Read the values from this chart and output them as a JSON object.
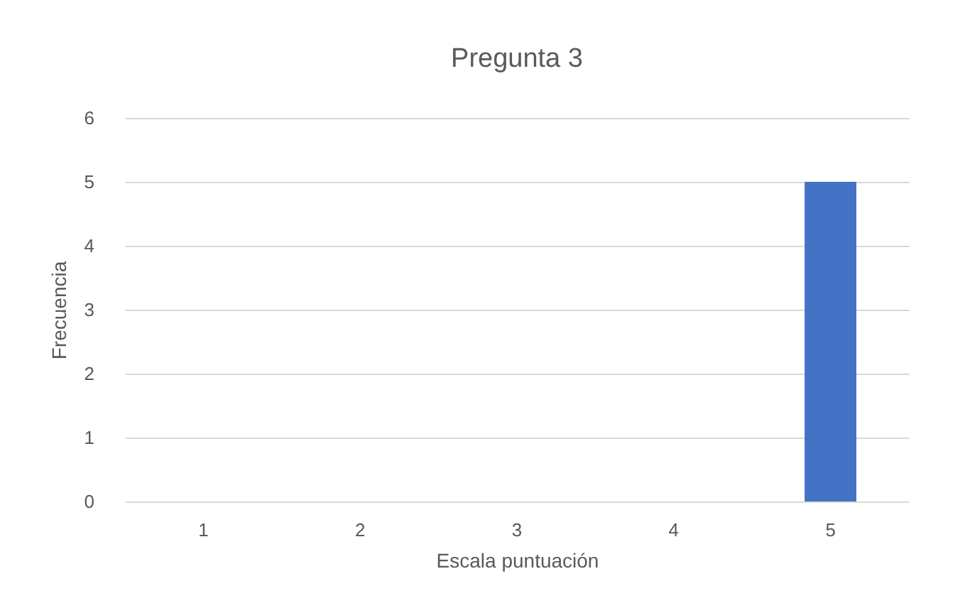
{
  "chart_data": {
    "type": "bar",
    "title": "Pregunta 3",
    "xlabel": "Escala puntuación",
    "ylabel": "Frecuencia",
    "categories": [
      "1",
      "2",
      "3",
      "4",
      "5"
    ],
    "values": [
      0,
      0,
      0,
      0,
      5
    ],
    "color": "#4472c4",
    "ylim": [
      0,
      6
    ],
    "yticks": [
      0,
      1,
      2,
      3,
      4,
      5,
      6
    ],
    "grid": "y"
  }
}
